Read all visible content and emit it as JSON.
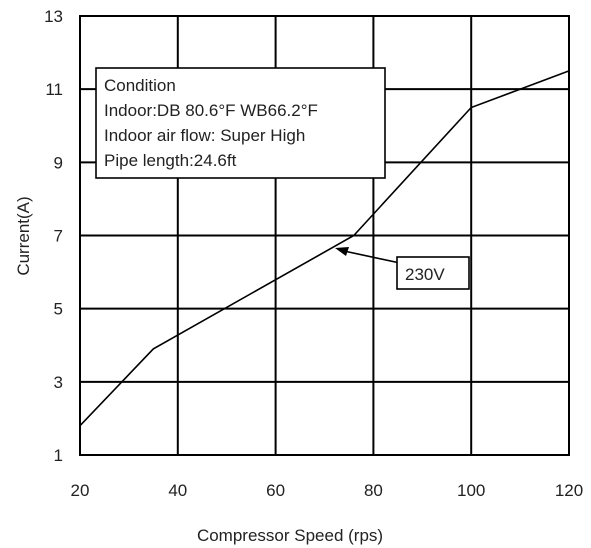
{
  "chart_data": {
    "type": "line",
    "xlabel": "Compressor Speed (rps)",
    "ylabel": "Current(A)",
    "xlim": [
      20,
      120
    ],
    "ylim": [
      1,
      13
    ],
    "xticks": [
      20,
      40,
      60,
      80,
      100,
      120
    ],
    "yticks": [
      1,
      3,
      5,
      7,
      9,
      11,
      13
    ],
    "grid": true,
    "series": [
      {
        "name": "230V",
        "x": [
          20,
          35,
          76,
          100,
          120
        ],
        "y": [
          1.8,
          3.9,
          7.0,
          10.5,
          11.5
        ]
      }
    ],
    "condition_box": {
      "lines": [
        "Condition",
        "Indoor:DB 80.6°F WB66.2°F",
        "Indoor air flow: Super High",
        "Pipe length:24.6ft"
      ]
    },
    "annotation": {
      "label": "230V",
      "points_to": {
        "x": 72,
        "y": 6.7
      }
    }
  }
}
